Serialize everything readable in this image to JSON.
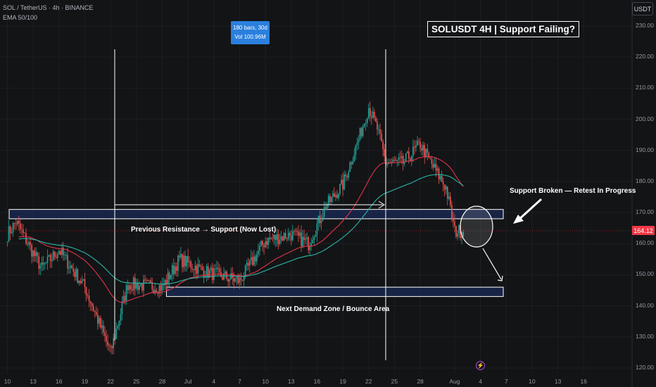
{
  "header": {
    "symbol_line": "SOL / TetherUS · 4h · BINANCE",
    "indicator_line": "EMA 50/100"
  },
  "currency_button": "USDT",
  "measure": {
    "line1": "180 bars, 30d",
    "line2": "Vol 100.96M"
  },
  "annotations": {
    "title": "SOLUSDT 4H | Support Failing?",
    "support_broken": "Support Broken — Retest In Progress",
    "previous_resistance": "Previous Resistance → Support (Now Lost)",
    "next_demand": "Next Demand Zone / Bounce Area"
  },
  "last_price": "164.12",
  "colors": {
    "background": "#131416",
    "bull": "#26a69a",
    "bear": "#ef5350",
    "ema50": "#e0354a",
    "ema100": "#2bb7a8",
    "zone_fill": "#1b2a55",
    "price_tag": "#f23645",
    "measure_box": "#2a7fde"
  },
  "event_icon": "lightning-icon",
  "chart_data": {
    "type": "candlestick",
    "interval": "4h",
    "ylim": [
      120,
      235
    ],
    "y_ticks": [
      "230.00",
      "220.00",
      "210.00",
      "200.00",
      "190.00",
      "180.00",
      "170.00",
      "160.00",
      "150.00",
      "140.00",
      "130.00",
      "120.00"
    ],
    "x_ticks": [
      "10",
      "13",
      "16",
      "19",
      "22",
      "25",
      "28",
      "Jul",
      "4",
      "7",
      "10",
      "13",
      "16",
      "19",
      "22",
      "25",
      "28",
      "Aug",
      "4",
      "7",
      "10",
      "13",
      "16"
    ],
    "key_prices": [
      {
        "date": "Jun 10",
        "close": 163
      },
      {
        "date": "Jun 11",
        "close": 167
      },
      {
        "date": "Jun 14",
        "close": 152
      },
      {
        "date": "Jun 16",
        "close": 158
      },
      {
        "date": "Jun 19",
        "close": 146
      },
      {
        "date": "Jun 22",
        "close": 125
      },
      {
        "date": "Jun 24",
        "close": 147
      },
      {
        "date": "Jun 28",
        "close": 146
      },
      {
        "date": "Jun 30",
        "close": 155
      },
      {
        "date": "Jul 3",
        "close": 151
      },
      {
        "date": "Jul 7",
        "close": 148
      },
      {
        "date": "Jul 10",
        "close": 161
      },
      {
        "date": "Jul 13",
        "close": 163
      },
      {
        "date": "Jul 15",
        "close": 160
      },
      {
        "date": "Jul 17",
        "close": 172
      },
      {
        "date": "Jul 19",
        "close": 179
      },
      {
        "date": "Jul 21",
        "close": 195
      },
      {
        "date": "Jul 22",
        "close": 204
      },
      {
        "date": "Jul 23",
        "close": 197
      },
      {
        "date": "Jul 24",
        "close": 186
      },
      {
        "date": "Jul 26",
        "close": 186
      },
      {
        "date": "Jul 28",
        "close": 192
      },
      {
        "date": "Jul 29",
        "close": 187
      },
      {
        "date": "Jul 31",
        "close": 178
      },
      {
        "date": "Aug 1",
        "close": 164
      },
      {
        "date": "Aug 2",
        "close": 164.12
      }
    ],
    "zones": [
      {
        "name": "Previous Resistance → Support (Now Lost)",
        "low": 168,
        "high": 171,
        "from": "Jun 10",
        "to": "Aug 5"
      },
      {
        "name": "Next Demand Zone / Bounce Area",
        "low": 143,
        "high": 146,
        "from": "Jun 28",
        "to": "Aug 5"
      }
    ],
    "last_price": 164.12
  }
}
